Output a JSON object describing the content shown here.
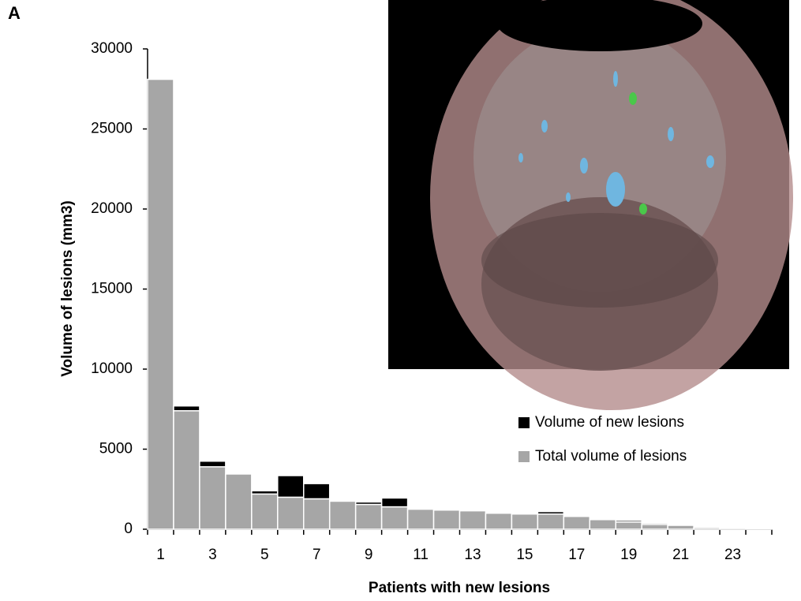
{
  "chart_data": {
    "type": "stacked_bar",
    "panel_label": "A",
    "x_label": "Patients with new lesions",
    "y_label": "Volume of lesions (mm3)",
    "categories": [
      "1",
      null,
      "3",
      null,
      "5",
      null,
      "7",
      null,
      "9",
      null,
      "11",
      null,
      "13",
      null,
      "15",
      null,
      "17",
      null,
      "19",
      null,
      "21",
      null,
      "23",
      null
    ],
    "series": [
      {
        "name": "Total volume of lesions",
        "color": "#a6a6a6",
        "values": [
          28100,
          7400,
          3900,
          3450,
          2200,
          2000,
          1900,
          1750,
          1550,
          1400,
          1250,
          1200,
          1150,
          1000,
          950,
          950,
          800,
          600,
          450,
          300,
          250,
          100,
          80,
          20
        ]
      },
      {
        "name": "Volume of new lesions",
        "color": "#000000",
        "values": [
          0,
          300,
          350,
          0,
          200,
          1350,
          950,
          0,
          150,
          550,
          0,
          50,
          0,
          0,
          0,
          150,
          30,
          0,
          100,
          80,
          50,
          0,
          0,
          0
        ]
      }
    ],
    "ylim": [
      0,
      30000
    ],
    "yticks": [
      0,
      5000,
      10000,
      15000,
      20000,
      25000,
      30000
    ],
    "grid": false
  }
}
